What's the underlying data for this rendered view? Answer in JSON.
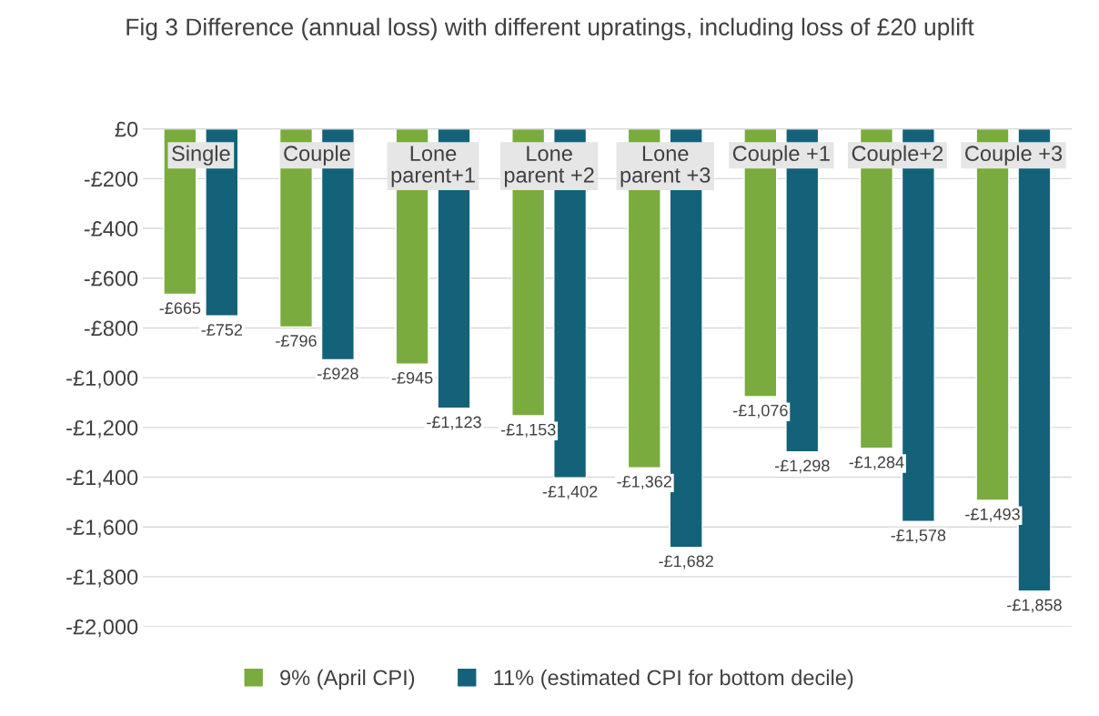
{
  "chart_data": {
    "type": "bar",
    "title": "Fig 3 Difference (annual loss) with different upratings, including loss of £20 uplift",
    "categories": [
      "Single",
      "Couple",
      "Lone parent+1",
      "Lone parent +2",
      "Lone parent +3",
      "Couple +1",
      "Couple+2",
      "Couple +3"
    ],
    "series": [
      {
        "name": "9% (April CPI)",
        "color": "#7aab3e",
        "values": [
          -665,
          -796,
          -945,
          -1153,
          -1362,
          -1076,
          -1284,
          -1493
        ],
        "value_labels": [
          "-£665",
          "-£796",
          "-£945",
          "-£1,153",
          "-£1,362",
          "-£1,076",
          "-£1,284",
          "-£1,493"
        ]
      },
      {
        "name": "11% (estimated CPI for bottom decile)",
        "color": "#14627a",
        "values": [
          -752,
          -928,
          -1123,
          -1402,
          -1682,
          -1298,
          -1578,
          -1858
        ],
        "value_labels": [
          "-£752",
          "-£928",
          "-£1,123",
          "-£1,402",
          "-£1,682",
          "-£1,298",
          "-£1,578",
          "-£1,858"
        ]
      }
    ],
    "ylim": [
      -2000,
      0
    ],
    "yticks": [
      {
        "value": 0,
        "label": "£0"
      },
      {
        "value": -200,
        "label": "-£200"
      },
      {
        "value": -400,
        "label": "-£400"
      },
      {
        "value": -600,
        "label": "-£600"
      },
      {
        "value": -800,
        "label": "-£800"
      },
      {
        "value": -1000,
        "label": "-£1,000"
      },
      {
        "value": -1200,
        "label": "-£1,200"
      },
      {
        "value": -1400,
        "label": "-£1,400"
      },
      {
        "value": -1600,
        "label": "-£1,600"
      },
      {
        "value": -1800,
        "label": "-£1,800"
      },
      {
        "value": -2000,
        "label": "-£2,000"
      }
    ],
    "grid": "y",
    "legend": "bottom"
  }
}
